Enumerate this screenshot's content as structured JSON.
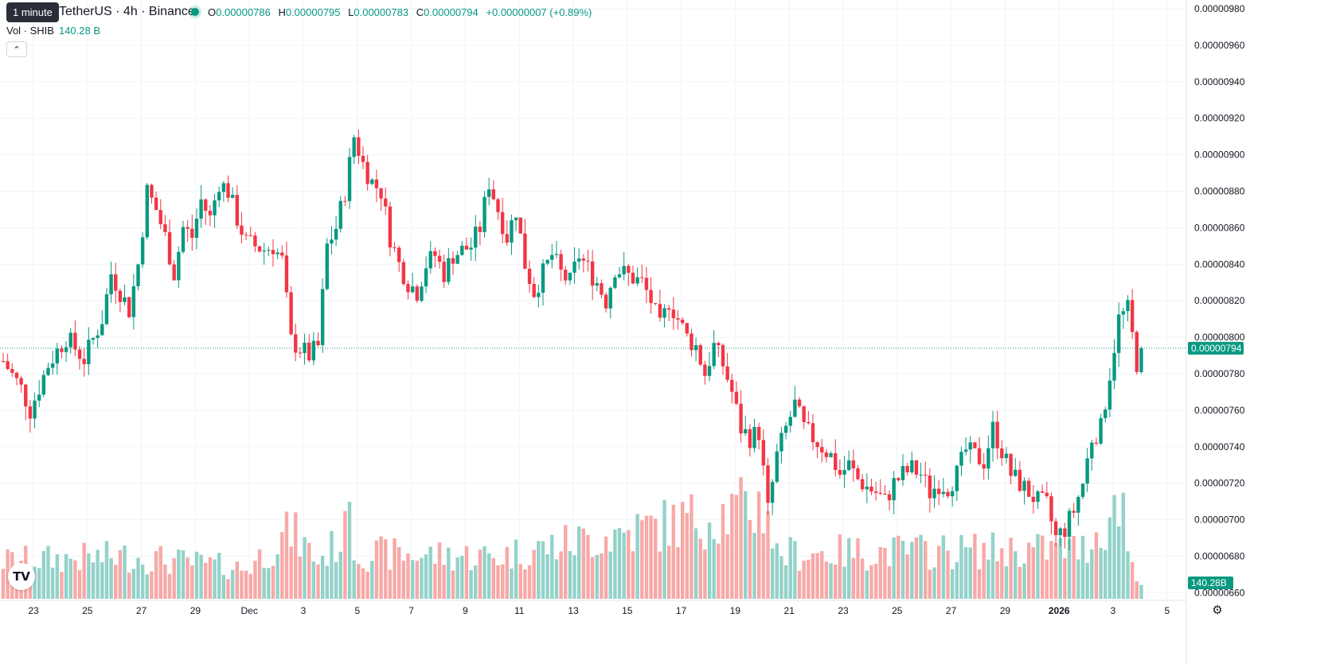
{
  "header": {
    "tooltip": "1 minute",
    "symbol": "TetherUS · 4h · Binance",
    "ohlc": {
      "o_label": "O",
      "o": "0.00000786",
      "h_label": "H",
      "h": "0.00000795",
      "l_label": "L",
      "l": "0.00000783",
      "c_label": "C",
      "c": "0.00000794",
      "change": "+0.00000007 (+0.89%)"
    },
    "volume": {
      "label": "Vol · SHIB",
      "value": "140.28 B"
    }
  },
  "icons": {
    "logo": "tradingview-logo-icon",
    "settings": "gear-icon",
    "collapse": "chevron-up-icon"
  },
  "colors": {
    "up": "#089981",
    "down": "#f23645",
    "vol_up": "#93d2c9",
    "vol_down": "#f7a9a7",
    "grid": "#f0f3fa",
    "axis_text": "#131722"
  },
  "chart_data": {
    "type": "candlestick",
    "symbol": "SHIB/USDT",
    "interval": "4h",
    "price_axis": {
      "min": 6.6e-06,
      "max": 9.8e-06,
      "ticks": [
        "0.00000980",
        "0.00000960",
        "0.00000940",
        "0.00000920",
        "0.00000900",
        "0.00000880",
        "0.00000860",
        "0.00000840",
        "0.00000820",
        "0.00000800",
        "0.00000780",
        "0.00000760",
        "0.00000740",
        "0.00000720",
        "0.00000700",
        "0.00000680",
        "0.00000660"
      ]
    },
    "time_axis": {
      "ticks": [
        "23",
        "25",
        "27",
        "29",
        "Dec",
        "3",
        "5",
        "7",
        "9",
        "11",
        "13",
        "15",
        "17",
        "19",
        "21",
        "23",
        "25",
        "27",
        "29",
        "2026",
        "3",
        "5"
      ]
    },
    "last_price": {
      "value": 7.94e-06,
      "label": "0.00000794"
    },
    "last_volume": {
      "label": "140.28B"
    },
    "keypoints": [
      [
        0,
        7.87
      ],
      [
        4,
        7.72
      ],
      [
        6,
        7.6
      ],
      [
        10,
        7.85
      ],
      [
        14,
        8.0
      ],
      [
        18,
        7.88
      ],
      [
        22,
        8.1
      ],
      [
        24,
        8.35
      ],
      [
        28,
        8.15
      ],
      [
        30,
        8.4
      ],
      [
        32,
        8.8
      ],
      [
        34,
        8.7
      ],
      [
        36,
        8.55
      ],
      [
        38,
        8.35
      ],
      [
        40,
        8.6
      ],
      [
        42,
        8.55
      ],
      [
        44,
        8.75
      ],
      [
        46,
        8.65
      ],
      [
        48,
        8.85
      ],
      [
        50,
        8.8
      ],
      [
        52,
        8.65
      ],
      [
        54,
        8.52
      ],
      [
        58,
        8.48
      ],
      [
        60,
        8.5
      ],
      [
        62,
        8.42
      ],
      [
        64,
        7.98
      ],
      [
        68,
        7.9
      ],
      [
        70,
        7.95
      ],
      [
        72,
        8.5
      ],
      [
        74,
        8.6
      ],
      [
        76,
        8.8
      ],
      [
        78,
        9.1
      ],
      [
        80,
        8.95
      ],
      [
        82,
        8.85
      ],
      [
        84,
        8.8
      ],
      [
        86,
        8.55
      ],
      [
        88,
        8.4
      ],
      [
        90,
        8.3
      ],
      [
        92,
        8.25
      ],
      [
        94,
        8.4
      ],
      [
        96,
        8.45
      ],
      [
        98,
        8.35
      ],
      [
        100,
        8.45
      ],
      [
        104,
        8.5
      ],
      [
        106,
        8.6
      ],
      [
        108,
        8.85
      ],
      [
        110,
        8.7
      ],
      [
        112,
        8.55
      ],
      [
        114,
        8.7
      ],
      [
        116,
        8.4
      ],
      [
        118,
        8.25
      ],
      [
        120,
        8.35
      ],
      [
        122,
        8.45
      ],
      [
        124,
        8.35
      ],
      [
        126,
        8.3
      ],
      [
        128,
        8.45
      ],
      [
        132,
        8.3
      ],
      [
        134,
        8.2
      ],
      [
        136,
        8.38
      ],
      [
        138,
        8.35
      ],
      [
        142,
        8.3
      ],
      [
        144,
        8.2
      ],
      [
        146,
        8.05
      ],
      [
        148,
        8.2
      ],
      [
        152,
        8.0
      ],
      [
        154,
        7.95
      ],
      [
        156,
        7.8
      ],
      [
        158,
        7.95
      ],
      [
        160,
        7.85
      ],
      [
        162,
        7.7
      ],
      [
        164,
        7.5
      ],
      [
        166,
        7.45
      ],
      [
        168,
        7.48
      ],
      [
        170,
        7.05
      ],
      [
        172,
        7.35
      ],
      [
        174,
        7.5
      ],
      [
        176,
        7.63
      ],
      [
        178,
        7.5
      ],
      [
        180,
        7.45
      ],
      [
        182,
        7.4
      ],
      [
        184,
        7.35
      ],
      [
        186,
        7.25
      ],
      [
        188,
        7.3
      ],
      [
        190,
        7.22
      ],
      [
        192,
        7.18
      ],
      [
        194,
        7.15
      ],
      [
        196,
        7.1
      ],
      [
        198,
        7.2
      ],
      [
        200,
        7.25
      ],
      [
        202,
        7.28
      ],
      [
        204,
        7.25
      ],
      [
        206,
        7.15
      ],
      [
        208,
        7.2
      ],
      [
        210,
        7.18
      ],
      [
        212,
        7.25
      ],
      [
        214,
        7.38
      ],
      [
        216,
        7.35
      ],
      [
        218,
        7.32
      ],
      [
        220,
        7.5
      ],
      [
        222,
        7.38
      ],
      [
        224,
        7.25
      ],
      [
        226,
        7.2
      ],
      [
        228,
        7.15
      ],
      [
        230,
        7.1
      ],
      [
        232,
        7.08
      ],
      [
        234,
        6.9
      ],
      [
        236,
        6.95
      ],
      [
        238,
        7.05
      ],
      [
        240,
        7.2
      ],
      [
        242,
        7.45
      ],
      [
        244,
        7.5
      ],
      [
        246,
        7.8
      ],
      [
        248,
        8.1
      ],
      [
        250,
        8.15
      ],
      [
        252,
        7.86
      ],
      [
        253,
        7.94
      ]
    ],
    "volume_keypoints": [
      [
        0,
        0.25
      ],
      [
        28,
        0.28
      ],
      [
        54,
        0.2
      ],
      [
        64,
        0.45
      ],
      [
        70,
        0.25
      ],
      [
        76,
        0.42
      ],
      [
        77,
        1.0
      ],
      [
        78,
        0.3
      ],
      [
        110,
        0.28
      ],
      [
        170,
        0.62
      ],
      [
        171,
        0.4
      ],
      [
        172,
        0.3
      ],
      [
        240,
        0.33
      ],
      [
        248,
        0.6
      ],
      [
        249,
        0.72
      ],
      [
        250,
        0.3
      ],
      [
        253,
        0.12
      ]
    ]
  }
}
